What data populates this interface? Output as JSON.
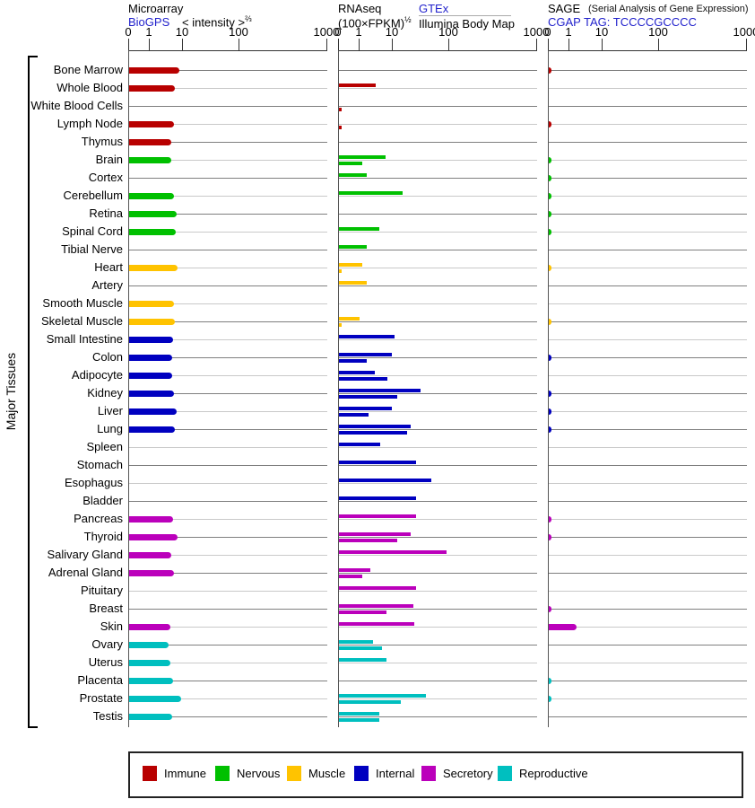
{
  "header": {
    "microarray": {
      "title": "Microarray",
      "link": "BioGPS",
      "axis_label": "< intensity >",
      "axis_exponent": "⅔"
    },
    "rnaseq": {
      "title": "RNAseq",
      "unit": "(100×FPKM)",
      "unit_exponent": "½",
      "link": "GTEx",
      "second_source": "Illumina Body Map"
    },
    "sage": {
      "title": "SAGE",
      "note": "(Serial Analysis of Gene Expression)",
      "link": "CGAP",
      "tag": "TAG: TCCCCGCCCC"
    }
  },
  "left_axis_label": "Major Tissues",
  "legend": {
    "items": [
      {
        "label": "Immune",
        "color": "#b80000"
      },
      {
        "label": "Nervous",
        "color": "#00c000"
      },
      {
        "label": "Muscle",
        "color": "#ffc300"
      },
      {
        "label": "Internal",
        "color": "#0000c0"
      },
      {
        "label": "Secretory",
        "color": "#bb00bb"
      },
      {
        "label": "Reproductive",
        "color": "#00bfbf"
      }
    ]
  },
  "chart_data": {
    "type": "bar",
    "orientation": "horizontal",
    "x_scale": "compressed-log",
    "tick_labels": [
      "0",
      "1",
      "10",
      "100",
      "1000"
    ],
    "tick_values": [
      0,
      1,
      10,
      100,
      1000
    ],
    "panels": [
      "Microarray (BioGPS, intensity^2/3)",
      "RNAseq (100×FPKM)^1/2 — GTEx upper bar / Illumina Body Map lower bar",
      "SAGE (CGAP TAG: TCCCCGCCCC)"
    ],
    "series_per_row": [
      "microarray",
      "rnaseq_gtex",
      "rnaseq_illumina",
      "sage"
    ],
    "groups": {
      "Immune": "#b80000",
      "Nervous": "#00c000",
      "Muscle": "#ffc300",
      "Internal": "#0000c0",
      "Secretory": "#bb00bb",
      "Reproductive": "#00bfbf"
    },
    "rows": [
      {
        "tissue": "Bone Marrow",
        "group": "Immune",
        "microarray": 7.8,
        "rnaseq_gtex": null,
        "rnaseq_illumina": null,
        "sage": 0.1
      },
      {
        "tissue": "Whole Blood",
        "group": "Immune",
        "microarray": 5.7,
        "rnaseq_gtex": 3.1,
        "rnaseq_illumina": null,
        "sage": null
      },
      {
        "tissue": "White Blood Cells",
        "group": "Immune",
        "microarray": null,
        "rnaseq_gtex": null,
        "rnaseq_illumina": 0.1,
        "sage": null
      },
      {
        "tissue": "Lymph Node",
        "group": "Immune",
        "microarray": 5.4,
        "rnaseq_gtex": null,
        "rnaseq_illumina": 0.1,
        "sage": 0.1
      },
      {
        "tissue": "Thymus",
        "group": "Immune",
        "microarray": 4.5,
        "rnaseq_gtex": null,
        "rnaseq_illumina": null,
        "sage": null
      },
      {
        "tissue": "Brain",
        "group": "Nervous",
        "microarray": 4.5,
        "rnaseq_gtex": 6.1,
        "rnaseq_illumina": 1.2,
        "sage": 0.1
      },
      {
        "tissue": "Cortex",
        "group": "Nervous",
        "microarray": null,
        "rnaseq_gtex": 1.6,
        "rnaseq_illumina": null,
        "sage": 0.1
      },
      {
        "tissue": "Cerebellum",
        "group": "Nervous",
        "microarray": 5.4,
        "rnaseq_gtex": 15,
        "rnaseq_illumina": null,
        "sage": 0.1
      },
      {
        "tissue": "Retina",
        "group": "Nervous",
        "microarray": 6.5,
        "rnaseq_gtex": null,
        "rnaseq_illumina": null,
        "sage": 0.1
      },
      {
        "tissue": "Spinal Cord",
        "group": "Nervous",
        "microarray": 6.1,
        "rnaseq_gtex": 3.9,
        "rnaseq_illumina": null,
        "sage": 0.1
      },
      {
        "tissue": "Tibial Nerve",
        "group": "Nervous",
        "microarray": null,
        "rnaseq_gtex": 1.6,
        "rnaseq_illumina": null,
        "sage": null
      },
      {
        "tissue": "Heart",
        "group": "Muscle",
        "microarray": 6.9,
        "rnaseq_gtex": 1.2,
        "rnaseq_illumina": 0.1,
        "sage": 0.1
      },
      {
        "tissue": "Artery",
        "group": "Muscle",
        "microarray": null,
        "rnaseq_gtex": 1.6,
        "rnaseq_illumina": null,
        "sage": null
      },
      {
        "tissue": "Smooth Muscle",
        "group": "Muscle",
        "microarray": 5.4,
        "rnaseq_gtex": null,
        "rnaseq_illumina": null,
        "sage": null
      },
      {
        "tissue": "Skeletal Muscle",
        "group": "Muscle",
        "microarray": 5.7,
        "rnaseq_gtex": 1.0,
        "rnaseq_illumina": 0.1,
        "sage": 0.1
      },
      {
        "tissue": "Small Intestine",
        "group": "Internal",
        "microarray": 5.0,
        "rnaseq_gtex": 10.8,
        "rnaseq_illumina": null,
        "sage": null
      },
      {
        "tissue": "Colon",
        "group": "Internal",
        "microarray": 4.7,
        "rnaseq_gtex": 9.4,
        "rnaseq_illumina": 1.6,
        "sage": 0.1
      },
      {
        "tissue": "Adipocyte",
        "group": "Internal",
        "microarray": 4.7,
        "rnaseq_gtex": 2.9,
        "rnaseq_illumina": 6.7,
        "sage": null
      },
      {
        "tissue": "Kidney",
        "group": "Internal",
        "microarray": 5.4,
        "rnaseq_gtex": 31,
        "rnaseq_illumina": 12,
        "sage": 0.1
      },
      {
        "tissue": "Liver",
        "group": "Internal",
        "microarray": 6.5,
        "rnaseq_gtex": 9.4,
        "rnaseq_illumina": 1.9,
        "sage": 0.1
      },
      {
        "tissue": "Lung",
        "group": "Internal",
        "microarray": 5.7,
        "rnaseq_gtex": 21,
        "rnaseq_illumina": 18,
        "sage": 0.1
      },
      {
        "tissue": "Spleen",
        "group": "Internal",
        "microarray": null,
        "rnaseq_gtex": 4.2,
        "rnaseq_illumina": null,
        "sage": null
      },
      {
        "tissue": "Stomach",
        "group": "Internal",
        "microarray": null,
        "rnaseq_gtex": 26,
        "rnaseq_illumina": null,
        "sage": null
      },
      {
        "tissue": "Esophagus",
        "group": "Internal",
        "microarray": null,
        "rnaseq_gtex": 48,
        "rnaseq_illumina": null,
        "sage": null
      },
      {
        "tissue": "Bladder",
        "group": "Internal",
        "microarray": null,
        "rnaseq_gtex": 26,
        "rnaseq_illumina": null,
        "sage": null
      },
      {
        "tissue": "Pancreas",
        "group": "Secretory",
        "microarray": 5.0,
        "rnaseq_gtex": 26,
        "rnaseq_illumina": null,
        "sage": 0.1
      },
      {
        "tissue": "Thyroid",
        "group": "Secretory",
        "microarray": 6.9,
        "rnaseq_gtex": 21,
        "rnaseq_illumina": 12,
        "sage": 0.1
      },
      {
        "tissue": "Salivary Gland",
        "group": "Secretory",
        "microarray": 4.5,
        "rnaseq_gtex": 90,
        "rnaseq_illumina": null,
        "sage": null
      },
      {
        "tissue": "Adrenal Gland",
        "group": "Secretory",
        "microarray": 5.4,
        "rnaseq_gtex": 2.1,
        "rnaseq_illumina": 1.2,
        "sage": null
      },
      {
        "tissue": "Pituitary",
        "group": "Secretory",
        "microarray": null,
        "rnaseq_gtex": 26,
        "rnaseq_illumina": null,
        "sage": null
      },
      {
        "tissue": "Breast",
        "group": "Secretory",
        "microarray": null,
        "rnaseq_gtex": 23,
        "rnaseq_illumina": 6.5,
        "sage": 0.1
      },
      {
        "tissue": "Skin",
        "group": "Secretory",
        "microarray": 4.2,
        "rnaseq_gtex": 24,
        "rnaseq_illumina": null,
        "sage": 1.6
      },
      {
        "tissue": "Ovary",
        "group": "Reproductive",
        "microarray": 3.7,
        "rnaseq_gtex": 2.5,
        "rnaseq_illumina": 4.7,
        "sage": null
      },
      {
        "tissue": "Uterus",
        "group": "Reproductive",
        "microarray": 4.2,
        "rnaseq_gtex": 6.5,
        "rnaseq_illumina": null,
        "sage": null
      },
      {
        "tissue": "Placenta",
        "group": "Reproductive",
        "microarray": 5.0,
        "rnaseq_gtex": null,
        "rnaseq_illumina": null,
        "sage": 0.1
      },
      {
        "tissue": "Prostate",
        "group": "Reproductive",
        "microarray": 8.8,
        "rnaseq_gtex": 38,
        "rnaseq_illumina": 14,
        "sage": 0.1
      },
      {
        "tissue": "Testis",
        "group": "Reproductive",
        "microarray": 4.7,
        "rnaseq_gtex": 3.9,
        "rnaseq_illumina": 3.9,
        "sage": null
      }
    ]
  }
}
